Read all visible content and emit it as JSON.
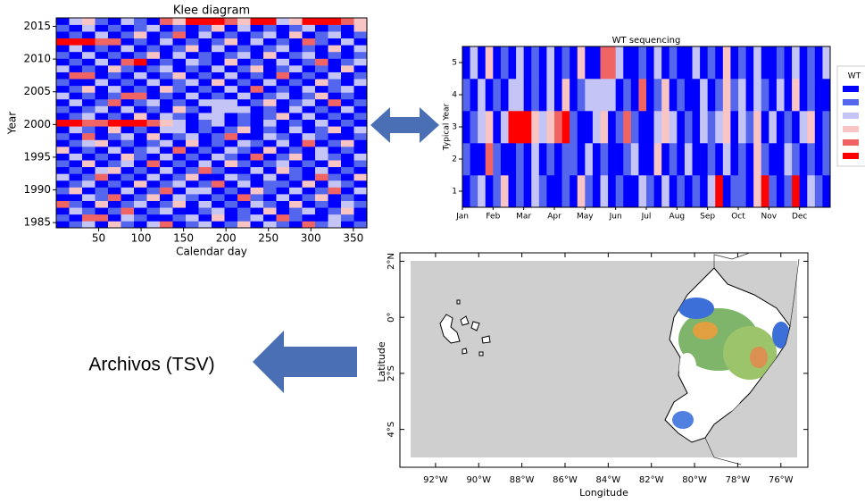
{
  "chart_data": [
    {
      "type": "heatmap",
      "title": "Klee diagram",
      "xlabel": "Calendar day",
      "ylabel": "Year",
      "xlim": [
        0,
        366
      ],
      "ylim": [
        1984.2,
        2016.3
      ],
      "xticks": [
        50,
        100,
        150,
        200,
        250,
        300,
        350
      ],
      "yticks": [
        1985,
        1990,
        1995,
        2000,
        2005,
        2010,
        2015
      ],
      "colors": [
        "#0000ff",
        "#5566ee",
        "#c4c4f6",
        "#f8c4c4",
        "#f06464",
        "#ff0000"
      ],
      "values": [
        [
          1,
          2,
          3,
          1,
          4,
          2,
          1,
          3,
          5,
          1,
          2,
          3,
          1,
          2,
          4,
          1,
          3,
          2,
          1,
          5,
          2,
          3,
          1,
          2
        ],
        [
          2,
          1,
          5,
          5,
          1,
          3,
          2,
          1,
          1,
          2,
          3,
          1,
          4,
          1,
          2,
          3,
          1,
          5,
          2,
          1,
          1,
          3,
          2,
          1
        ],
        [
          1,
          3,
          2,
          1,
          2,
          5,
          1,
          2,
          3,
          1,
          1,
          2,
          3,
          1,
          2,
          1,
          4,
          1,
          2,
          3,
          1,
          2,
          4,
          1
        ],
        [
          5,
          2,
          1,
          4,
          1,
          2,
          3,
          1,
          2,
          4,
          1,
          3,
          1,
          2,
          1,
          3,
          2,
          1,
          4,
          1,
          2,
          1,
          3,
          2
        ],
        [
          1,
          1,
          3,
          2,
          5,
          1,
          2,
          4,
          1,
          3,
          2,
          1,
          2,
          1,
          5,
          2,
          1,
          3,
          1,
          2,
          4,
          1,
          2,
          1
        ],
        [
          2,
          4,
          1,
          2,
          1,
          3,
          1,
          2,
          5,
          1,
          3,
          3,
          1,
          2,
          1,
          4,
          2,
          1,
          3,
          1,
          2,
          5,
          1,
          3
        ],
        [
          1,
          2,
          3,
          1,
          2,
          1,
          4,
          1,
          2,
          3,
          1,
          2,
          5,
          1,
          3,
          1,
          2,
          2,
          1,
          4,
          1,
          3,
          2,
          1
        ],
        [
          3,
          1,
          2,
          5,
          1,
          2,
          1,
          3,
          1,
          2,
          4,
          1,
          1,
          3,
          2,
          1,
          3,
          1,
          2,
          1,
          5,
          2,
          1,
          4
        ],
        [
          1,
          2,
          1,
          3,
          4,
          1,
          2,
          1,
          3,
          1,
          2,
          5,
          2,
          1,
          1,
          3,
          1,
          4,
          2,
          1,
          3,
          1,
          2,
          1
        ],
        [
          2,
          1,
          4,
          1,
          2,
          3,
          1,
          5,
          1,
          2,
          1,
          3,
          1,
          4,
          2,
          1,
          2,
          3,
          1,
          2,
          1,
          4,
          1,
          2
        ],
        [
          1,
          3,
          1,
          2,
          1,
          4,
          2,
          1,
          3,
          1,
          2,
          1,
          3,
          2,
          1,
          5,
          1,
          2,
          4,
          1,
          3,
          2,
          1,
          3
        ],
        [
          4,
          1,
          2,
          1,
          3,
          1,
          2,
          3,
          1,
          5,
          1,
          2,
          1,
          3,
          2,
          1,
          4,
          1,
          2,
          1,
          3,
          1,
          2,
          1
        ],
        [
          1,
          2,
          3,
          4,
          1,
          2,
          1,
          2,
          3,
          1,
          4,
          1,
          2,
          1,
          3,
          2,
          1,
          3,
          1,
          5,
          1,
          2,
          4,
          1
        ],
        [
          2,
          1,
          5,
          1,
          2,
          3,
          1,
          4,
          1,
          2,
          3,
          1,
          2,
          5,
          1,
          1,
          3,
          2,
          1,
          3,
          2,
          1,
          1,
          2
        ],
        [
          1,
          3,
          2,
          1,
          4,
          1,
          2,
          1,
          3,
          3,
          1,
          2,
          1,
          2,
          4,
          1,
          2,
          1,
          3,
          1,
          2,
          4,
          1,
          3
        ],
        [
          6,
          6,
          5,
          5,
          6,
          6,
          6,
          5,
          4,
          3,
          1,
          2,
          3,
          1,
          2,
          1,
          3,
          1,
          2,
          1,
          3,
          1,
          2,
          1
        ],
        [
          1,
          2,
          3,
          1,
          2,
          1,
          4,
          1,
          3,
          2,
          1,
          3,
          3,
          1,
          2,
          1,
          2,
          4,
          1,
          3,
          1,
          2,
          1,
          2
        ],
        [
          2,
          1,
          2,
          3,
          1,
          3,
          1,
          2,
          1,
          4,
          2,
          1,
          3,
          3,
          3,
          1,
          2,
          1,
          3,
          1,
          2,
          1,
          3,
          1
        ],
        [
          1,
          3,
          1,
          2,
          5,
          1,
          2,
          3,
          1,
          2,
          1,
          3,
          3,
          3,
          1,
          2,
          4,
          1,
          2,
          3,
          1,
          5,
          1,
          2
        ],
        [
          3,
          1,
          2,
          1,
          2,
          5,
          5,
          1,
          2,
          1,
          3,
          1,
          2,
          1,
          3,
          1,
          2,
          3,
          1,
          2,
          4,
          1,
          2,
          1
        ],
        [
          1,
          2,
          4,
          1,
          3,
          1,
          2,
          1,
          4,
          2,
          1,
          2,
          1,
          3,
          1,
          5,
          1,
          2,
          1,
          3,
          1,
          2,
          3,
          1
        ],
        [
          2,
          1,
          1,
          3,
          1,
          2,
          1,
          3,
          1,
          2,
          3,
          1,
          4,
          1,
          2,
          1,
          3,
          1,
          2,
          1,
          4,
          2,
          1,
          3
        ],
        [
          1,
          5,
          5,
          1,
          2,
          1,
          3,
          1,
          2,
          4,
          1,
          2,
          1,
          3,
          1,
          2,
          1,
          5,
          1,
          2,
          1,
          3,
          1,
          2
        ],
        [
          3,
          1,
          2,
          1,
          4,
          2,
          1,
          2,
          3,
          1,
          2,
          1,
          3,
          1,
          2,
          4,
          1,
          2,
          3,
          1,
          2,
          1,
          4,
          1
        ],
        [
          1,
          2,
          1,
          3,
          1,
          5,
          6,
          1,
          2,
          1,
          3,
          2,
          1,
          4,
          1,
          2,
          1,
          3,
          1,
          2,
          5,
          1,
          2,
          3
        ],
        [
          2,
          1,
          3,
          1,
          2,
          1,
          2,
          4,
          1,
          3,
          1,
          2,
          1,
          2,
          3,
          1,
          4,
          1,
          2,
          3,
          1,
          2,
          1,
          2
        ],
        [
          1,
          3,
          1,
          2,
          1,
          3,
          1,
          2,
          1,
          2,
          4,
          1,
          3,
          1,
          2,
          1,
          2,
          3,
          1,
          2,
          1,
          4,
          1,
          3
        ],
        [
          6,
          6,
          6,
          5,
          5,
          1,
          2,
          1,
          3,
          1,
          2,
          1,
          2,
          4,
          1,
          3,
          1,
          2,
          1,
          5,
          2,
          1,
          3,
          1
        ],
        [
          1,
          2,
          1,
          3,
          1,
          2,
          4,
          1,
          2,
          5,
          1,
          3,
          1,
          2,
          1,
          2,
          3,
          1,
          4,
          1,
          2,
          3,
          1,
          2
        ],
        [
          2,
          1,
          3,
          1,
          2,
          1,
          2,
          3,
          1,
          2,
          1,
          2,
          4,
          1,
          3,
          1,
          2,
          1,
          2,
          3,
          1,
          2,
          1,
          4
        ],
        [
          1,
          3,
          4,
          2,
          1,
          3,
          2,
          1,
          5,
          4,
          6,
          6,
          6,
          5,
          4,
          6,
          6,
          3,
          4,
          6,
          6,
          6,
          5,
          4
        ]
      ]
    },
    {
      "type": "heatmap",
      "title": "WT sequencing",
      "ylabel": "Typical Year",
      "legend_title": "WT",
      "categories": [
        "Jan",
        "Feb",
        "Mar",
        "Apr",
        "May",
        "Jun",
        "Jul",
        "Aug",
        "Sep",
        "Oct",
        "Nov",
        "Dec"
      ],
      "ylim": [
        0.5,
        5.5
      ],
      "yticks": [
        1,
        2,
        3,
        4,
        5
      ],
      "colors": [
        "#0000ff",
        "#5566ee",
        "#c4c4f6",
        "#f8c4c4",
        "#f06464",
        "#ff0000"
      ],
      "values": [
        [
          1,
          2,
          3,
          1,
          2,
          4,
          1,
          2,
          1,
          3,
          2,
          1,
          1,
          2,
          1,
          4,
          2,
          1,
          3,
          1,
          2,
          1,
          1,
          3,
          2,
          1,
          3,
          1,
          2,
          1,
          2,
          1,
          3,
          6,
          1,
          2,
          2,
          1,
          4,
          6,
          2,
          1,
          2,
          6,
          1,
          3,
          2,
          1
        ],
        [
          2,
          1,
          1,
          5,
          2,
          1,
          1,
          2,
          1,
          3,
          1,
          2,
          1,
          2,
          2,
          1,
          3,
          1,
          2,
          1,
          1,
          2,
          3,
          1,
          1,
          4,
          1,
          2,
          1,
          3,
          1,
          1,
          2,
          1,
          3,
          1,
          2,
          1,
          4,
          2,
          1,
          1,
          3,
          2,
          1,
          2,
          1,
          2
        ],
        [
          1,
          2,
          3,
          4,
          1,
          3,
          6,
          6,
          6,
          4,
          3,
          4,
          5,
          6,
          2,
          1,
          1,
          3,
          4,
          1,
          2,
          5,
          2,
          1,
          1,
          3,
          4,
          3,
          1,
          2,
          1,
          3,
          2,
          3,
          4,
          1,
          3,
          2,
          4,
          1,
          3,
          1,
          2,
          1,
          3,
          4,
          1,
          2
        ],
        [
          2,
          1,
          3,
          1,
          2,
          1,
          3,
          3,
          1,
          2,
          1,
          3,
          1,
          4,
          1,
          2,
          3,
          3,
          3,
          3,
          1,
          2,
          1,
          5,
          1,
          2,
          4,
          1,
          2,
          1,
          1,
          3,
          1,
          2,
          4,
          2,
          3,
          1,
          3,
          2,
          1,
          3,
          1,
          4,
          1,
          2,
          1,
          1
        ],
        [
          1,
          3,
          1,
          4,
          1,
          2,
          1,
          3,
          1,
          2,
          1,
          3,
          1,
          2,
          1,
          4,
          1,
          1,
          5,
          5,
          3,
          1,
          1,
          2,
          1,
          3,
          1,
          2,
          1,
          1,
          3,
          1,
          2,
          1,
          4,
          1,
          2,
          1,
          3,
          1,
          1,
          2,
          1,
          3,
          1,
          2,
          1,
          3
        ]
      ]
    },
    {
      "type": "map",
      "xlabel": "Longitude",
      "ylabel": "Latitude",
      "xlim": [
        -93.65,
        -74.75
      ],
      "ylim": [
        -5.35,
        2.3
      ],
      "xticks": [
        {
          "value": -92,
          "label": "92°W"
        },
        {
          "value": -90,
          "label": "90°W"
        },
        {
          "value": -88,
          "label": "88°W"
        },
        {
          "value": -86,
          "label": "86°W"
        },
        {
          "value": -84,
          "label": "84°W"
        },
        {
          "value": -82,
          "label": "82°W"
        },
        {
          "value": -80,
          "label": "80°W"
        },
        {
          "value": -78,
          "label": "78°W"
        },
        {
          "value": -76,
          "label": "76°W"
        }
      ],
      "yticks": [
        {
          "value": 2,
          "label": "2°N"
        },
        {
          "value": 0,
          "label": "0°"
        },
        {
          "value": -2,
          "label": "2°S"
        },
        {
          "value": -4,
          "label": "4°S"
        }
      ]
    }
  ],
  "caption": "Archivos (TSV)"
}
